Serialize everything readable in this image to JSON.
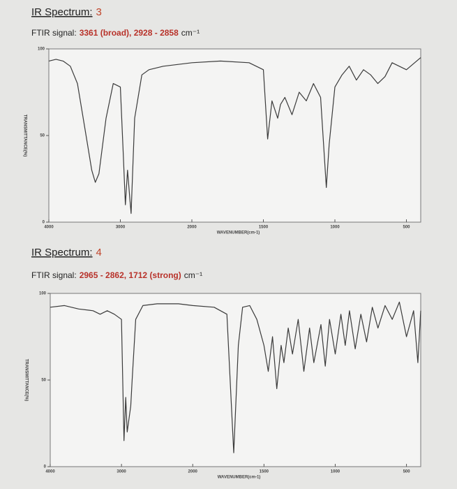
{
  "chart_data": [
    {
      "type": "line",
      "title": "IR Spectrum:",
      "title_number": "3",
      "subtitle_label": "FTIR signal:",
      "subtitle_value": "3361 (broad), 2928 - 2858",
      "subtitle_unit": "cm⁻¹",
      "x_label": "WAVENUMBER(cm-1)",
      "y_label": "TRANSMITTANCE(%)",
      "xlim": [
        4000,
        400
      ],
      "xticks": [
        4000,
        3000,
        2000,
        1500,
        1000,
        500
      ],
      "ylim": [
        0,
        100
      ],
      "yticks": [
        0,
        50,
        100
      ],
      "color": "#3a3a3a",
      "x": [
        4000,
        3900,
        3800,
        3700,
        3600,
        3500,
        3400,
        3350,
        3300,
        3200,
        3100,
        3000,
        2960,
        2930,
        2900,
        2870,
        2850,
        2800,
        2700,
        2600,
        2400,
        2200,
        2000,
        1800,
        1600,
        1500,
        1470,
        1440,
        1400,
        1380,
        1350,
        1300,
        1250,
        1200,
        1150,
        1100,
        1060,
        1040,
        1000,
        950,
        900,
        850,
        800,
        750,
        700,
        650,
        600,
        500,
        400
      ],
      "values": [
        93,
        94,
        93,
        90,
        80,
        55,
        30,
        23,
        28,
        60,
        80,
        78,
        40,
        10,
        30,
        15,
        5,
        60,
        85,
        88,
        90,
        91,
        92,
        93,
        92,
        88,
        48,
        70,
        60,
        68,
        72,
        62,
        75,
        70,
        80,
        72,
        20,
        45,
        78,
        85,
        90,
        82,
        88,
        85,
        80,
        84,
        92,
        88,
        95
      ]
    },
    {
      "type": "line",
      "title": "IR Spectrum:",
      "title_number": "4",
      "subtitle_label": "FTIR signal:",
      "subtitle_value": "2965 - 2862, 1712 (strong)",
      "subtitle_unit": "cm⁻¹",
      "x_label": "WAVENUMBER(cm-1)",
      "y_label": "TRANSMITTANCE(%)",
      "xlim": [
        4000,
        400
      ],
      "xticks": [
        4000,
        3000,
        2000,
        1500,
        1000,
        500
      ],
      "ylim": [
        0,
        100
      ],
      "yticks": [
        0,
        50,
        100
      ],
      "color": "#3a3a3a",
      "x": [
        4000,
        3800,
        3600,
        3400,
        3300,
        3200,
        3100,
        3000,
        2965,
        2940,
        2920,
        2870,
        2850,
        2800,
        2700,
        2500,
        2200,
        2000,
        1850,
        1760,
        1712,
        1680,
        1650,
        1600,
        1550,
        1500,
        1470,
        1440,
        1410,
        1380,
        1360,
        1330,
        1300,
        1260,
        1220,
        1180,
        1150,
        1100,
        1070,
        1040,
        1000,
        960,
        930,
        900,
        860,
        820,
        780,
        740,
        700,
        650,
        600,
        550,
        500,
        450,
        420,
        400
      ],
      "values": [
        92,
        93,
        91,
        90,
        88,
        90,
        88,
        85,
        15,
        40,
        20,
        35,
        50,
        85,
        93,
        94,
        94,
        93,
        92,
        88,
        8,
        70,
        92,
        93,
        85,
        70,
        55,
        75,
        45,
        70,
        60,
        80,
        65,
        85,
        55,
        80,
        60,
        82,
        58,
        85,
        65,
        88,
        70,
        90,
        68,
        88,
        72,
        92,
        80,
        93,
        85,
        95,
        75,
        90,
        60,
        90
      ]
    }
  ]
}
